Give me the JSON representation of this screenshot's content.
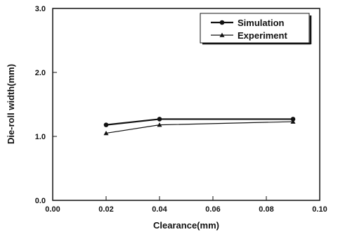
{
  "chart_data": {
    "type": "line",
    "xlabel": "Clearance(mm)",
    "ylabel": "Die-roll width(mm)",
    "xlim": [
      0.0,
      0.1
    ],
    "ylim": [
      0.0,
      3.0
    ],
    "xticks": [
      "0.00",
      "0.02",
      "0.04",
      "0.06",
      "0.08",
      "0.10"
    ],
    "yticks": [
      "0.0",
      "1.0",
      "2.0",
      "3.0"
    ],
    "grid": false,
    "legend_position": "top-right",
    "series": [
      {
        "name": "Simulation",
        "marker": "circle",
        "x": [
          0.02,
          0.04,
          0.09
        ],
        "y": [
          1.18,
          1.27,
          1.27
        ]
      },
      {
        "name": "Experiment",
        "marker": "triangle",
        "x": [
          0.02,
          0.04,
          0.09
        ],
        "y": [
          1.05,
          1.18,
          1.23
        ]
      }
    ]
  }
}
